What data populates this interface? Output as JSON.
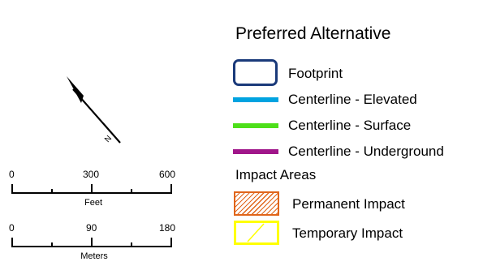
{
  "north_arrow": {
    "label": "N"
  },
  "scale_feet": {
    "ticks": [
      "0",
      "300",
      "600"
    ],
    "unit": "Feet"
  },
  "scale_meters": {
    "ticks": [
      "0",
      "90",
      "180"
    ],
    "unit": "Meters"
  },
  "legend": {
    "title": "Preferred Alternative",
    "items": [
      {
        "label": "Footprint",
        "symbol": "outline-rounded-rect",
        "color": "#1a3a7a"
      },
      {
        "label": "Centerline - Elevated",
        "symbol": "line",
        "color": "#00a3e0"
      },
      {
        "label": "Centerline - Surface",
        "symbol": "line",
        "color": "#4ddf1a"
      },
      {
        "label": "Centerline - Underground",
        "symbol": "line",
        "color": "#a0168a"
      }
    ],
    "impact_title": "Impact Areas",
    "impact_items": [
      {
        "label": "Permanent Impact",
        "symbol": "hatched-box",
        "color": "#e0651a"
      },
      {
        "label": "Temporary Impact",
        "symbol": "outline-box-diagonal",
        "color": "#ffff00"
      }
    ]
  }
}
